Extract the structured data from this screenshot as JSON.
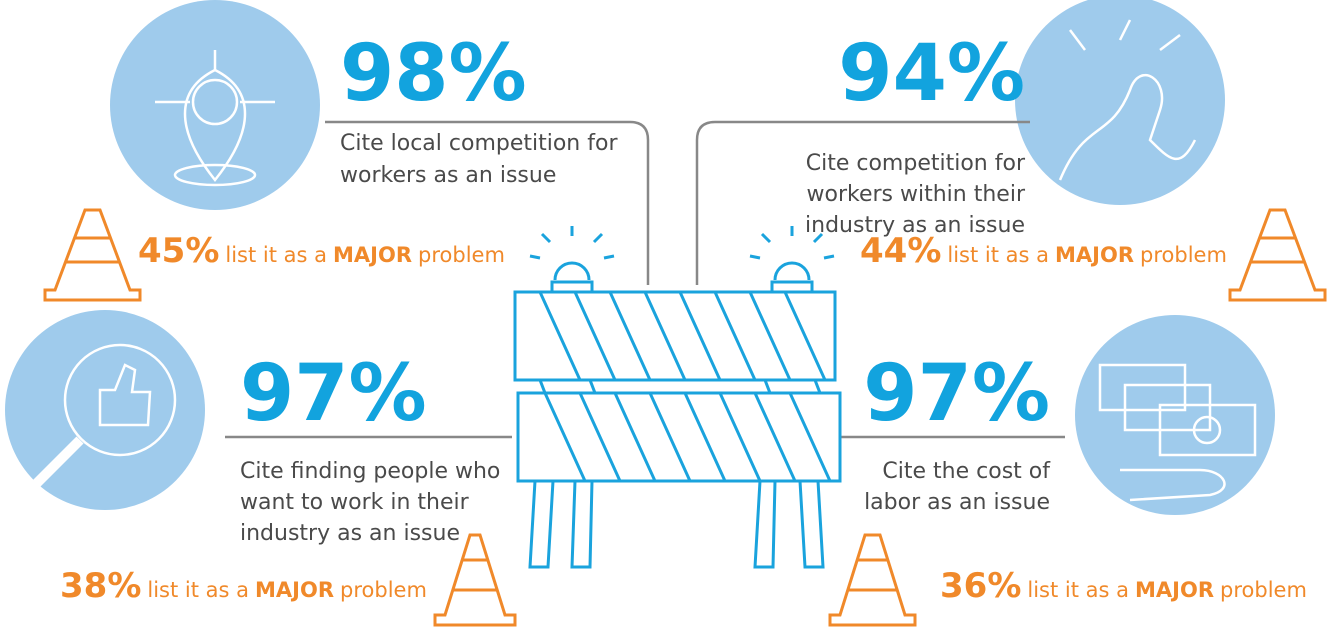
{
  "items": [
    {
      "percent": "98%",
      "description": [
        "Cite local competition for",
        "workers as an issue"
      ],
      "major_percent": "45%",
      "major_before": "list it as a",
      "major_word": "MAJOR",
      "major_after": "problem"
    },
    {
      "percent": "94%",
      "description": [
        "Cite competition for",
        "workers within their",
        "industry as an issue"
      ],
      "major_percent": "44%",
      "major_before": "list it as a",
      "major_word": "MAJOR",
      "major_after": "problem"
    },
    {
      "percent": "97%",
      "description": [
        "Cite finding people who",
        "want to work in their",
        "industry as an issue"
      ],
      "major_percent": "38%",
      "major_before": "list it as a",
      "major_word": "MAJOR",
      "major_after": "problem"
    },
    {
      "percent": "97%",
      "description": [
        "Cite the cost of",
        "labor as an issue"
      ],
      "major_percent": "36%",
      "major_before": "list it as a",
      "major_word": "MAJOR",
      "major_after": "problem"
    }
  ]
}
